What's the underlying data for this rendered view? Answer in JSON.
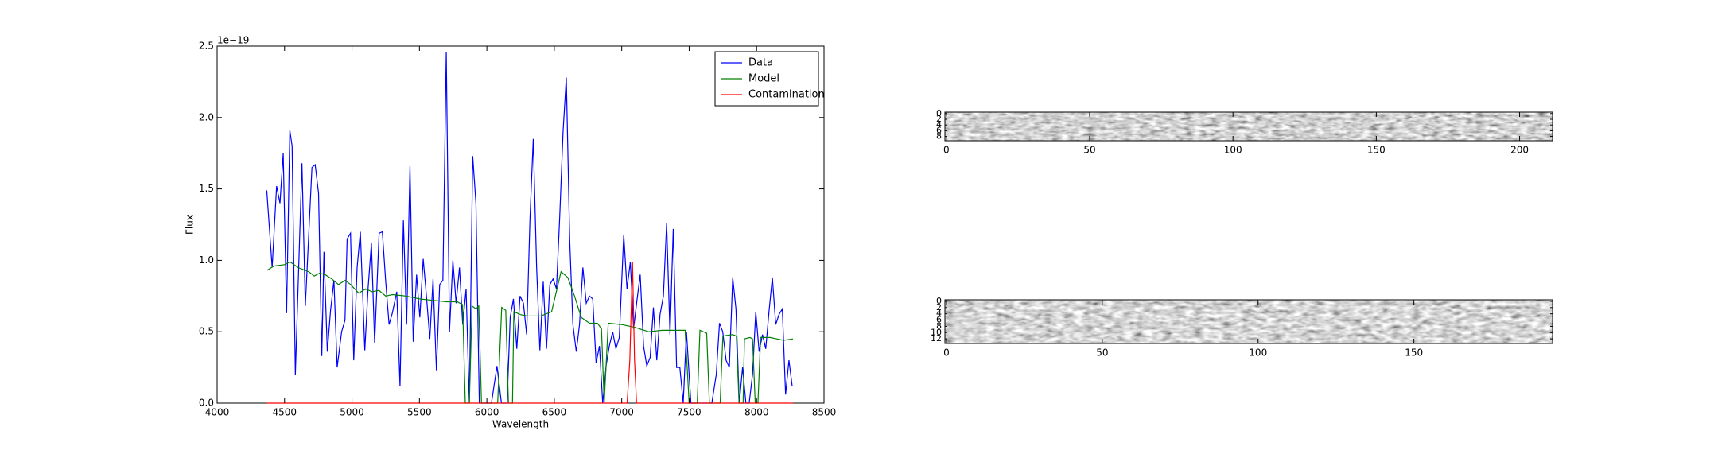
{
  "chart_data": [
    {
      "type": "line",
      "xlabel": "Wavelength",
      "ylabel": "Flux",
      "offset_label": "1e−19",
      "xlim": [
        4000,
        8500
      ],
      "xticks": [
        4000,
        4500,
        5000,
        5500,
        6000,
        6500,
        7000,
        7500,
        8000,
        8500
      ],
      "ylim": [
        0,
        2.5
      ],
      "yticks": [
        {
          "value": 0,
          "label": "0.0"
        },
        0.5,
        {
          "value": 1,
          "label": "1.0"
        },
        1.5,
        {
          "value": 2,
          "label": "2.0"
        },
        2.5
      ],
      "legend": "upper right",
      "series": [
        {
          "name": "Data",
          "color": "#0000ff",
          "x": [
            4368,
            4408,
            4441,
            4466,
            4490,
            4515,
            4539,
            4556,
            4580,
            4629,
            4654,
            4703,
            4727,
            4752,
            4776,
            4792,
            4817,
            4841,
            4866,
            4890,
            4923,
            4948,
            4964,
            4989,
            5013,
            5038,
            5062,
            5095,
            5119,
            5144,
            5168,
            5201,
            5225,
            5250,
            5275,
            5299,
            5332,
            5356,
            5381,
            5405,
            5430,
            5454,
            5479,
            5503,
            5528,
            5552,
            5577,
            5601,
            5626,
            5650,
            5674,
            5699,
            5723,
            5748,
            5772,
            5797,
            5821,
            5846,
            5870,
            5895,
            5919,
            5944,
            5985,
            6034,
            6075,
            6108,
            6150,
            6173,
            6197,
            6222,
            6246,
            6271,
            6295,
            6320,
            6344,
            6369,
            6393,
            6418,
            6442,
            6467,
            6491,
            6516,
            6540,
            6565,
            6589,
            6614,
            6638,
            6663,
            6687,
            6712,
            6737,
            6761,
            6785,
            6810,
            6835,
            6859,
            6884,
            6908,
            6933,
            6957,
            6982,
            7015,
            7039,
            7064,
            7088,
            7113,
            7137,
            7162,
            7186,
            7211,
            7235,
            7260,
            7284,
            7309,
            7333,
            7358,
            7382,
            7407,
            7431,
            7456,
            7480,
            7513,
            7562,
            7619,
            7668,
            7701,
            7725,
            7749,
            7774,
            7798,
            7823,
            7847,
            7872,
            7896,
            7921,
            7945,
            7970,
            7994,
            8019,
            8044,
            8068,
            8093,
            8117,
            8142,
            8166,
            8191,
            8215,
            8240,
            8264
          ],
          "values": [
            1.49,
            0.95,
            1.52,
            1.4,
            1.75,
            0.63,
            1.91,
            1.8,
            0.2,
            1.68,
            0.68,
            1.65,
            1.67,
            1.47,
            0.33,
            1.06,
            0.36,
            0.65,
            0.86,
            0.25,
            0.5,
            0.58,
            1.15,
            1.19,
            0.3,
            0.95,
            1.2,
            0.37,
            0.8,
            1.12,
            0.42,
            1.19,
            1.2,
            0.85,
            0.55,
            0.63,
            0.78,
            0.12,
            1.28,
            0.55,
            1.66,
            0.43,
            0.9,
            0.6,
            1.01,
            0.75,
            0.45,
            0.87,
            0.23,
            0.83,
            0.86,
            2.46,
            0.5,
            1.0,
            0.7,
            0.95,
            0.55,
            0.8,
            0.0,
            1.73,
            1.4,
            0.0,
            0.0,
            0.0,
            0.26,
            0.0,
            0.0,
            0.6,
            0.73,
            0.38,
            0.75,
            0.7,
            0.48,
            1.3,
            1.85,
            0.95,
            0.37,
            0.85,
            0.38,
            0.83,
            0.87,
            0.8,
            1.3,
            1.9,
            2.28,
            1.15,
            0.55,
            0.36,
            0.55,
            0.95,
            0.7,
            0.75,
            0.73,
            0.28,
            0.4,
            0.0,
            0.26,
            0.4,
            0.5,
            0.38,
            0.46,
            1.18,
            0.8,
            0.99,
            0.52,
            0.72,
            0.9,
            0.4,
            0.26,
            0.32,
            0.67,
            0.3,
            0.62,
            0.75,
            1.26,
            0.48,
            1.22,
            0.25,
            0.25,
            0.0,
            0.5,
            0.0,
            0.0,
            0.0,
            0.0,
            0.2,
            0.56,
            0.5,
            0.3,
            0.25,
            0.88,
            0.66,
            0.0,
            0.25,
            0.0,
            0.0,
            0.2,
            0.64,
            0.36,
            0.48,
            0.38,
            0.65,
            0.88,
            0.55,
            0.62,
            0.66,
            0.06,
            0.3,
            0.12
          ]
        },
        {
          "name": "Model",
          "color": "#008000",
          "x": [
            4370,
            4420,
            4500,
            4540,
            4600,
            4680,
            4720,
            4760,
            4800,
            4850,
            4900,
            4950,
            4990,
            5050,
            5100,
            5150,
            5200,
            5250,
            5300,
            5400,
            5500,
            5600,
            5700,
            5780,
            5820,
            5840,
            5870,
            5890,
            5920,
            5940,
            5960,
            6080,
            6110,
            6140,
            6160,
            6190,
            6200,
            6250,
            6300,
            6400,
            6480,
            6550,
            6600,
            6650,
            6700,
            6760,
            6820,
            6850,
            6870,
            6900,
            7000,
            7100,
            7200,
            7300,
            7400,
            7470,
            7500,
            7560,
            7580,
            7630,
            7650,
            7730,
            7750,
            7820,
            7850,
            7870,
            7900,
            7910,
            7950,
            7970,
            7990,
            8010,
            8030,
            8100,
            8150,
            8200,
            8270
          ],
          "values": [
            0.93,
            0.96,
            0.97,
            0.99,
            0.95,
            0.92,
            0.89,
            0.91,
            0.9,
            0.87,
            0.83,
            0.86,
            0.83,
            0.77,
            0.8,
            0.78,
            0.79,
            0.75,
            0.76,
            0.75,
            0.73,
            0.72,
            0.71,
            0.71,
            0.69,
            0.0,
            0.0,
            0.68,
            0.66,
            0.68,
            0.0,
            0.0,
            0.67,
            0.65,
            0.0,
            0.0,
            0.64,
            0.62,
            0.61,
            0.61,
            0.64,
            0.92,
            0.88,
            0.75,
            0.6,
            0.56,
            0.56,
            0.52,
            0.0,
            0.56,
            0.55,
            0.53,
            0.5,
            0.51,
            0.51,
            0.51,
            0.0,
            0.0,
            0.51,
            0.49,
            0.0,
            0.0,
            0.47,
            0.48,
            0.47,
            0.0,
            0.0,
            0.45,
            0.46,
            0.45,
            0.0,
            0.0,
            0.46,
            0.46,
            0.45,
            0.44,
            0.45
          ]
        },
        {
          "name": "Contamination",
          "color": "#ff0000",
          "x": [
            4370,
            7040,
            7060,
            7080,
            7095,
            7110,
            8270
          ],
          "values": [
            0,
            0,
            0.3,
            0.99,
            0.3,
            0,
            0
          ]
        }
      ]
    },
    {
      "type": "image",
      "xlim": [
        -0.5,
        211.5
      ],
      "xticks": [
        0,
        50,
        100,
        150,
        200
      ],
      "ylim": [
        9.5,
        -0.5
      ],
      "yticks": [
        0,
        2,
        4,
        6,
        8
      ]
    },
    {
      "type": "image",
      "xlim": [
        -0.5,
        194.5
      ],
      "xticks": [
        0,
        50,
        100,
        150
      ],
      "ylim": [
        13.5,
        -0.5
      ],
      "yticks": [
        0,
        2,
        4,
        6,
        8,
        10,
        12
      ]
    }
  ]
}
